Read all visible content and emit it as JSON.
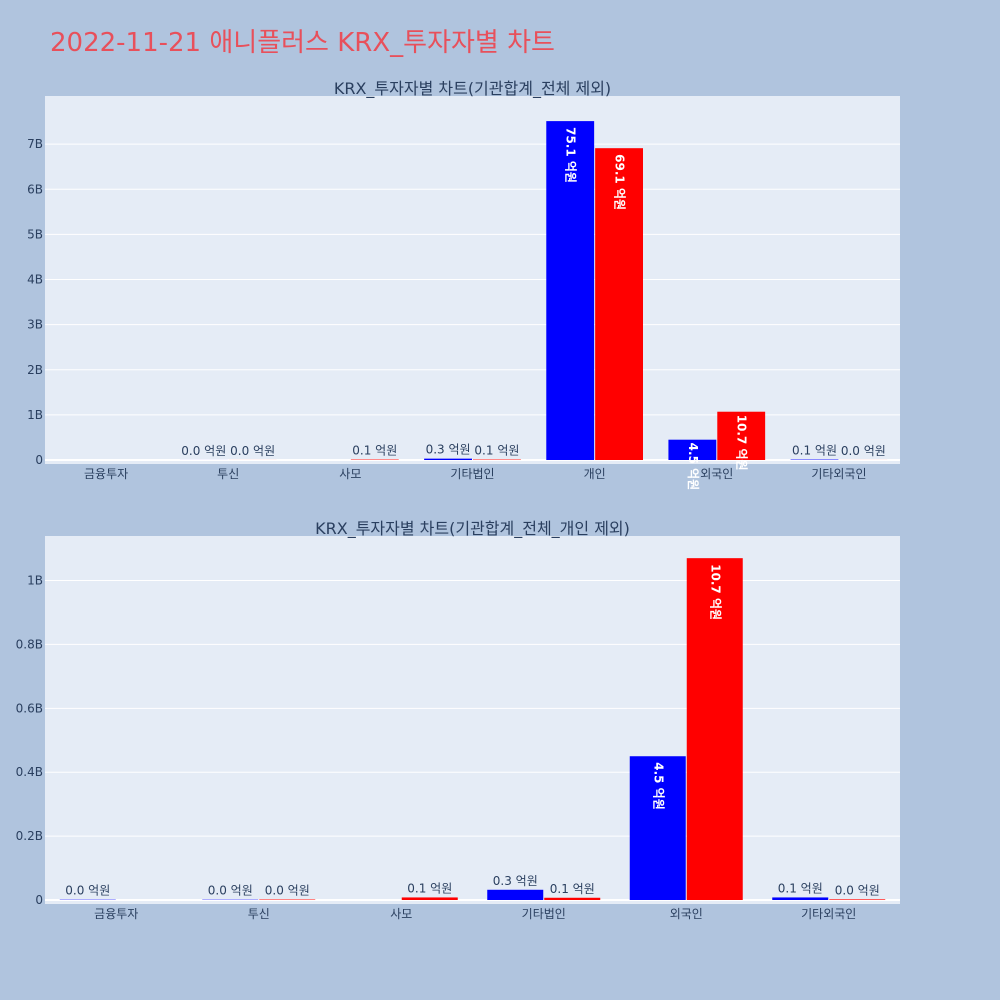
{
  "page": {
    "title": "2022-11-21 애니플러스 KRX_투자자별 차트"
  },
  "chart_data": [
    {
      "type": "bar",
      "title": "KRX_투자자별 차트(기관합계_전체 제외)",
      "categories": [
        "금융투자",
        "투신",
        "사모",
        "기타법인",
        "개인",
        "외국인",
        "기타외국인"
      ],
      "ylim": [
        0,
        8000000000
      ],
      "ytick_values": [
        0,
        1000000000,
        2000000000,
        3000000000,
        4000000000,
        5000000000,
        6000000000,
        7000000000
      ],
      "ytick_labels": [
        "0",
        "1B",
        "2B",
        "3B",
        "4B",
        "5B",
        "6B",
        "7B"
      ],
      "series": [
        {
          "color": "#0000ff",
          "values": [
            null,
            1000000,
            null,
            30000000,
            7510000000,
            450000000,
            10000000
          ],
          "labels": [
            "",
            "0.0 억원",
            "",
            "0.3 억원",
            "75.1 억원",
            "4.5 억원",
            "0.1 억원"
          ]
        },
        {
          "color": "#ff0000",
          "values": [
            null,
            1000000,
            10000000,
            10000000,
            6910000000,
            1070000000,
            1000000
          ],
          "labels": [
            "",
            "0.0 억원",
            "0.1 억원",
            "0.1 억원",
            "69.1 억원",
            "10.7 억원",
            "0.0 억원"
          ]
        }
      ],
      "grid": true,
      "legend": "none"
    },
    {
      "type": "bar",
      "title": "KRX_투자자별 차트(기관합계_전체_개인 제외)",
      "categories": [
        "금융투자",
        "투신",
        "사모",
        "기타법인",
        "외국인",
        "기타외국인"
      ],
      "ylim": [
        0,
        1130000000
      ],
      "ytick_values": [
        0,
        200000000,
        400000000,
        600000000,
        800000000,
        1000000000
      ],
      "ytick_labels": [
        "0",
        "0.2B",
        "0.4B",
        "0.6B",
        "0.8B",
        "1B"
      ],
      "series": [
        {
          "color": "#0000ff",
          "values": [
            1000000,
            1000000,
            null,
            32000000,
            450000000,
            8000000
          ],
          "labels": [
            "0.0 억원",
            "0.0 억원",
            "",
            "0.3 억원",
            "4.5 억원",
            "0.1 억원"
          ]
        },
        {
          "color": "#ff0000",
          "values": [
            null,
            1500000,
            8000000,
            7000000,
            1070000000,
            2000000
          ],
          "labels": [
            "",
            "0.0 억원",
            "0.1 억원",
            "0.1 억원",
            "10.7 억원",
            "0.0 억원"
          ]
        }
      ],
      "grid": true,
      "legend": "none"
    }
  ]
}
